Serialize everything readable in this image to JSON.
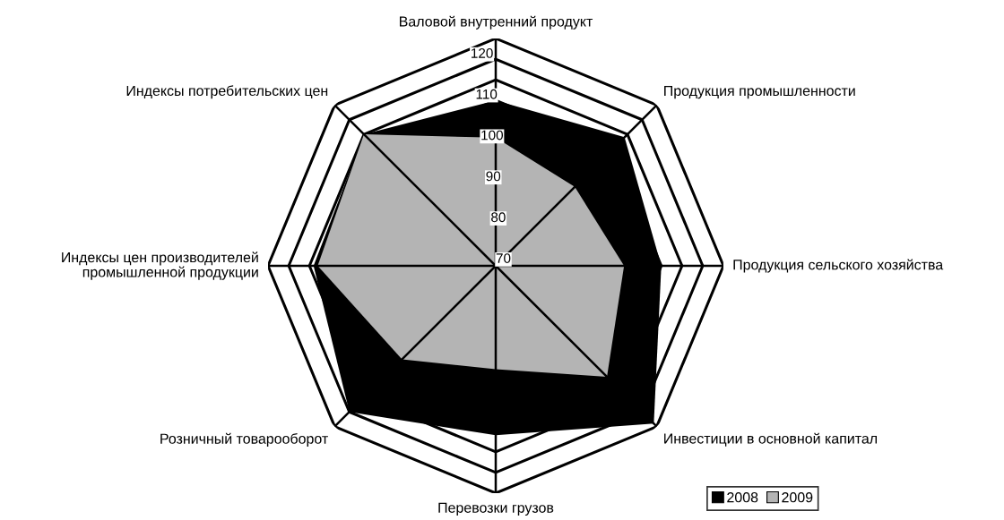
{
  "chart_data": {
    "type": "radar",
    "categories": [
      "Валовой внутренний продукт",
      "Продукция промышленности",
      "Продукция сельского хозяйства",
      "Инвестиции в основной капитал",
      "Перевозки грузов",
      "Розничный товарооборот",
      "Индексы цен производителей\nпромышленной продукции",
      "Индексы потребительских цен"
    ],
    "series": [
      {
        "name": "2008",
        "color": "#000000",
        "values": [
          110,
          114,
          110,
          124,
          111,
          120,
          114,
          115
        ]
      },
      {
        "name": "2009",
        "color": "#b4b4b4",
        "values": [
          101,
          97,
          101,
          108,
          95,
          102,
          113,
          115
        ]
      }
    ],
    "ylim": [
      70,
      125
    ],
    "yticks": [
      70,
      80,
      90,
      100,
      110,
      120
    ],
    "grid": true,
    "legend": "bottom right"
  }
}
